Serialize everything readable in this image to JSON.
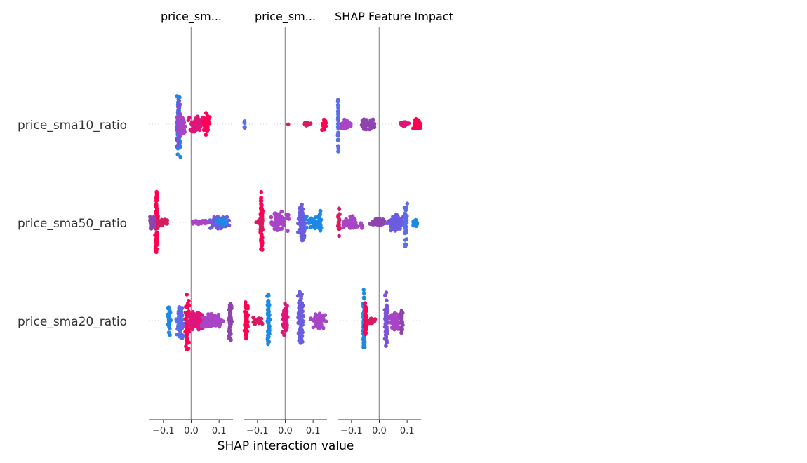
{
  "chart_data": {
    "type": "scatter",
    "subtype": "shap-interaction-beeswarm",
    "xlabel": "SHAP interaction value",
    "features": [
      "price_sma10_ratio",
      "price_sma50_ratio",
      "price_sma20_ratio"
    ],
    "panels": [
      {
        "title": "price_sm...",
        "xlim": [
          -0.15,
          0.15
        ],
        "xticks": [
          {
            "value": -0.1,
            "label": "−0.1"
          },
          {
            "value": 0.0,
            "label": "0.0"
          },
          {
            "value": 0.1,
            "label": "0.1"
          }
        ],
        "rows": [
          {
            "feature": "price_sma10_ratio",
            "clusters": [
              {
                "center": -0.045,
                "spread": 0.006,
                "height": 50,
                "count": 80,
                "color": "#1e88e5"
              },
              {
                "center": -0.045,
                "spread": 0.006,
                "height": 40,
                "count": 40,
                "color": "#7c52d9"
              },
              {
                "center": -0.035,
                "spread": 0.012,
                "height": 16,
                "count": 40,
                "color": "#a845c6"
              },
              {
                "center": 0.02,
                "spread": 0.02,
                "height": 12,
                "count": 70,
                "color": "#e0157a"
              },
              {
                "center": 0.055,
                "spread": 0.01,
                "height": 18,
                "count": 40,
                "color": "#ff0052"
              }
            ]
          },
          {
            "feature": "price_sma50_ratio",
            "clusters": [
              {
                "center": -0.125,
                "spread": 0.004,
                "height": 50,
                "count": 90,
                "color": "#ff0052"
              },
              {
                "center": -0.11,
                "spread": 0.02,
                "height": 6,
                "count": 40,
                "color": "#d81b60"
              },
              {
                "center": -0.14,
                "spread": 0.008,
                "height": 12,
                "count": 25,
                "color": "#8e44ad"
              },
              {
                "center": 0.03,
                "spread": 0.03,
                "height": 3,
                "count": 30,
                "color": "#a845c6"
              },
              {
                "center": 0.1,
                "spread": 0.025,
                "height": 10,
                "count": 90,
                "color": "#6b5ce0"
              },
              {
                "center": 0.11,
                "spread": 0.015,
                "height": 6,
                "count": 30,
                "color": "#1e88e5"
              }
            ]
          },
          {
            "feature": "price_sma20_ratio",
            "clusters": [
              {
                "center": -0.08,
                "spread": 0.004,
                "height": 22,
                "count": 40,
                "color": "#1e88e5"
              },
              {
                "center": -0.04,
                "spread": 0.01,
                "height": 26,
                "count": 70,
                "color": "#5b6ee6"
              },
              {
                "center": -0.015,
                "spread": 0.006,
                "height": 44,
                "count": 40,
                "color": "#ff0052"
              },
              {
                "center": 0.02,
                "spread": 0.03,
                "height": 14,
                "count": 110,
                "color": "#e0157a"
              },
              {
                "center": 0.075,
                "spread": 0.03,
                "height": 12,
                "count": 90,
                "color": "#a845c6"
              },
              {
                "center": 0.14,
                "spread": 0.004,
                "height": 30,
                "count": 50,
                "color": "#8e44ad"
              }
            ]
          }
        ]
      },
      {
        "title": "price_sm...",
        "xlim": [
          -0.15,
          0.15
        ],
        "xticks": [
          {
            "value": -0.1,
            "label": "−0.1"
          },
          {
            "value": 0.0,
            "label": "0.0"
          },
          {
            "value": 0.1,
            "label": "0.1"
          }
        ],
        "rows": [
          {
            "feature": "price_sma10_ratio",
            "clusters": [
              {
                "center": -0.146,
                "spread": 0.001,
                "height": 10,
                "count": 8,
                "color": "#5b6ee6"
              },
              {
                "center": 0.01,
                "spread": 0.001,
                "height": 1,
                "count": 1,
                "color": "#d81b60"
              },
              {
                "center": 0.075,
                "spread": 0.012,
                "height": 3,
                "count": 20,
                "color": "#d81b60"
              },
              {
                "center": 0.14,
                "spread": 0.006,
                "height": 10,
                "count": 20,
                "color": "#ff0052"
              }
            ]
          },
          {
            "feature": "price_sma50_ratio",
            "clusters": [
              {
                "center": -0.085,
                "spread": 0.003,
                "height": 46,
                "count": 90,
                "color": "#ff0052"
              },
              {
                "center": -0.09,
                "spread": 0.01,
                "height": 8,
                "count": 25,
                "color": "#d81b60"
              },
              {
                "center": -0.02,
                "spread": 0.025,
                "height": 16,
                "count": 70,
                "color": "#a845c6"
              },
              {
                "center": 0.06,
                "spread": 0.01,
                "height": 30,
                "count": 70,
                "color": "#6b5ce0"
              },
              {
                "center": 0.1,
                "spread": 0.025,
                "height": 10,
                "count": 40,
                "color": "#1e88e5"
              },
              {
                "center": 0.125,
                "spread": 0.003,
                "height": 24,
                "count": 25,
                "color": "#1e88e5"
              }
            ]
          },
          {
            "feature": "price_sma20_ratio",
            "clusters": [
              {
                "center": -0.14,
                "spread": 0.005,
                "height": 30,
                "count": 60,
                "color": "#ff0052"
              },
              {
                "center": -0.1,
                "spread": 0.015,
                "height": 6,
                "count": 25,
                "color": "#d81b60"
              },
              {
                "center": -0.06,
                "spread": 0.004,
                "height": 40,
                "count": 60,
                "color": "#1e88e5"
              },
              {
                "center": 0.0,
                "spread": 0.008,
                "height": 26,
                "count": 60,
                "color": "#e0157a"
              },
              {
                "center": 0.055,
                "spread": 0.008,
                "height": 44,
                "count": 90,
                "color": "#6b5ce0"
              },
              {
                "center": 0.12,
                "spread": 0.02,
                "height": 12,
                "count": 50,
                "color": "#a845c6"
              }
            ]
          }
        ]
      },
      {
        "title": "SHAP Feature Impact",
        "xlim": [
          -0.15,
          0.15
        ],
        "xticks": [
          {
            "value": -0.1,
            "label": "−0.1"
          },
          {
            "value": 0.0,
            "label": "0.0"
          },
          {
            "value": 0.1,
            "label": "0.1"
          }
        ],
        "rows": [
          {
            "feature": "price_sma10_ratio",
            "clusters": [
              {
                "center": -0.148,
                "spread": 0.001,
                "height": 46,
                "count": 30,
                "color": "#5b6ee6"
              },
              {
                "center": -0.12,
                "spread": 0.015,
                "height": 8,
                "count": 40,
                "color": "#a845c6"
              },
              {
                "center": -0.04,
                "spread": 0.02,
                "height": 8,
                "count": 50,
                "color": "#8e44ad"
              },
              {
                "center": 0.09,
                "spread": 0.012,
                "height": 4,
                "count": 25,
                "color": "#e0157a"
              },
              {
                "center": 0.135,
                "spread": 0.012,
                "height": 8,
                "count": 60,
                "color": "#ff0052"
              }
            ]
          },
          {
            "feature": "price_sma50_ratio",
            "clusters": [
              {
                "center": -0.145,
                "spread": 0.003,
                "height": 22,
                "count": 25,
                "color": "#d81b60"
              },
              {
                "center": -0.1,
                "spread": 0.025,
                "height": 10,
                "count": 60,
                "color": "#a845c6"
              },
              {
                "center": 0.0,
                "spread": 0.025,
                "height": 6,
                "count": 50,
                "color": "#8e44ad"
              },
              {
                "center": 0.06,
                "spread": 0.02,
                "height": 14,
                "count": 60,
                "color": "#6b5ce0"
              },
              {
                "center": 0.095,
                "spread": 0.004,
                "height": 40,
                "count": 40,
                "color": "#5b6ee6"
              },
              {
                "center": 0.13,
                "spread": 0.01,
                "height": 6,
                "count": 25,
                "color": "#1e88e5"
              }
            ]
          },
          {
            "feature": "price_sma20_ratio",
            "clusters": [
              {
                "center": -0.055,
                "spread": 0.003,
                "height": 48,
                "count": 70,
                "color": "#1e88e5"
              },
              {
                "center": -0.05,
                "spread": 0.004,
                "height": 30,
                "count": 30,
                "color": "#ff0052"
              },
              {
                "center": -0.03,
                "spread": 0.012,
                "height": 4,
                "count": 15,
                "color": "#d81b60"
              },
              {
                "center": 0.025,
                "spread": 0.004,
                "height": 42,
                "count": 60,
                "color": "#7c52d9"
              },
              {
                "center": 0.055,
                "spread": 0.015,
                "height": 16,
                "count": 60,
                "color": "#a845c6"
              },
              {
                "center": 0.08,
                "spread": 0.004,
                "height": 20,
                "count": 25,
                "color": "#8e44ad"
              }
            ]
          }
        ]
      }
    ]
  }
}
